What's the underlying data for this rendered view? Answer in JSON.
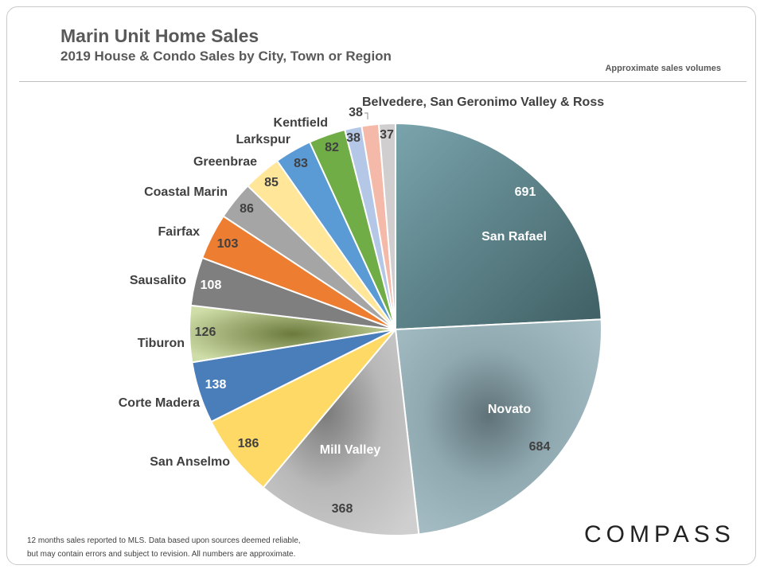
{
  "header": {
    "title": "Marin Unit Home Sales",
    "subtitle": "2019 House & Condo Sales by City, Town or Region",
    "note": "Approximate sales volumes"
  },
  "footer": {
    "footnote_line1": "12 months sales reported to MLS. Data based upon sources deemed reliable,",
    "footnote_line2": "but may contain errors and subject to revision. All numbers are approximate.",
    "logo": "COMPASS"
  },
  "chart_data": {
    "type": "pie",
    "title": "Marin Unit Home Sales",
    "subtitle": "2019 House & Condo Sales by City, Town or Region",
    "categories": [
      "San Rafael",
      "Novato",
      "Mill Valley",
      "San Anselmo",
      "Corte Madera",
      "Tiburon",
      "Sausalito",
      "Fairfax",
      "Coastal Marin",
      "Greenbrae",
      "Larkspur",
      "Kentfield",
      "",
      "",
      ""
    ],
    "values": [
      691,
      684,
      368,
      186,
      138,
      126,
      108,
      103,
      86,
      85,
      83,
      82,
      38,
      38,
      37
    ],
    "merged_label": "Belvedere, San Geronimo Valley & Ross",
    "colors": [
      "#6f9aa3",
      "#9fb6bf",
      "#bdbdbd",
      "#ffd966",
      "#4a7ebb",
      "#c3d69b",
      "#7f7f7f",
      "#ed7d31",
      "#a5a5a5",
      "#ffe699",
      "#5b9bd5",
      "#70ad47",
      "#b4c7e7",
      "#f4b9a8",
      "#d0cece"
    ]
  }
}
